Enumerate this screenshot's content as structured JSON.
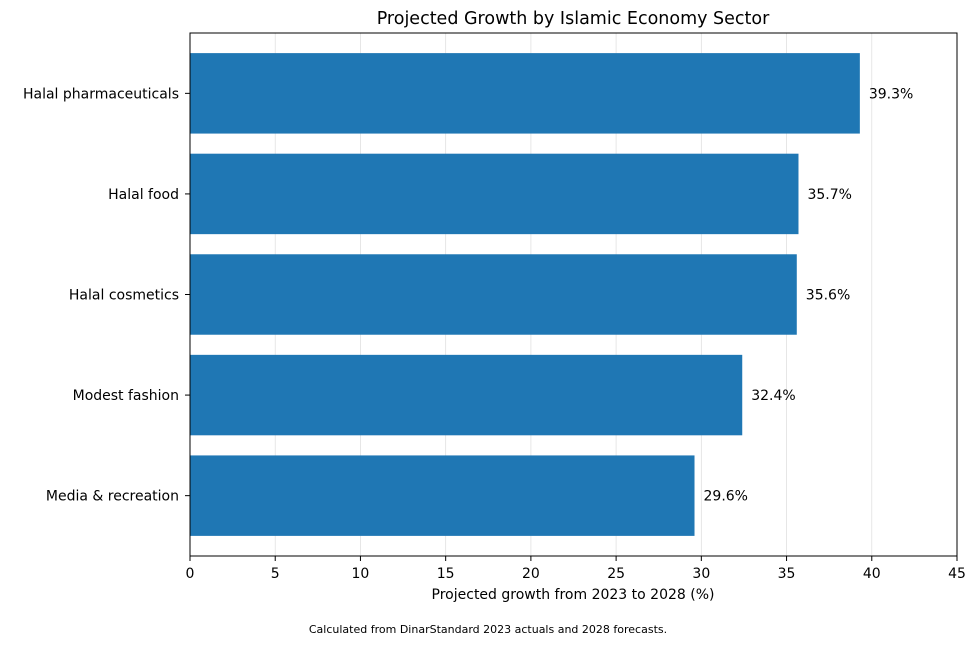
{
  "chart_data": {
    "type": "bar",
    "orientation": "horizontal",
    "title": "Projected Growth by Islamic Economy Sector",
    "xlabel": "Projected growth from 2023 to 2028 (%)",
    "ylabel": "",
    "categories": [
      "Halal pharmaceuticals",
      "Halal food",
      "Halal cosmetics",
      "Modest fashion",
      "Media & recreation"
    ],
    "values": [
      39.3,
      35.7,
      35.6,
      32.4,
      29.6
    ],
    "value_labels": [
      "39.3%",
      "35.7%",
      "35.6%",
      "32.4%",
      "29.6%"
    ],
    "xlim": [
      0,
      45
    ],
    "xticks": [
      0,
      5,
      10,
      15,
      20,
      25,
      30,
      35,
      40,
      45
    ],
    "grid": "x",
    "bar_color": "#1f77b4",
    "footnote": "Calculated from DinarStandard 2023 actuals and 2028 forecasts."
  }
}
